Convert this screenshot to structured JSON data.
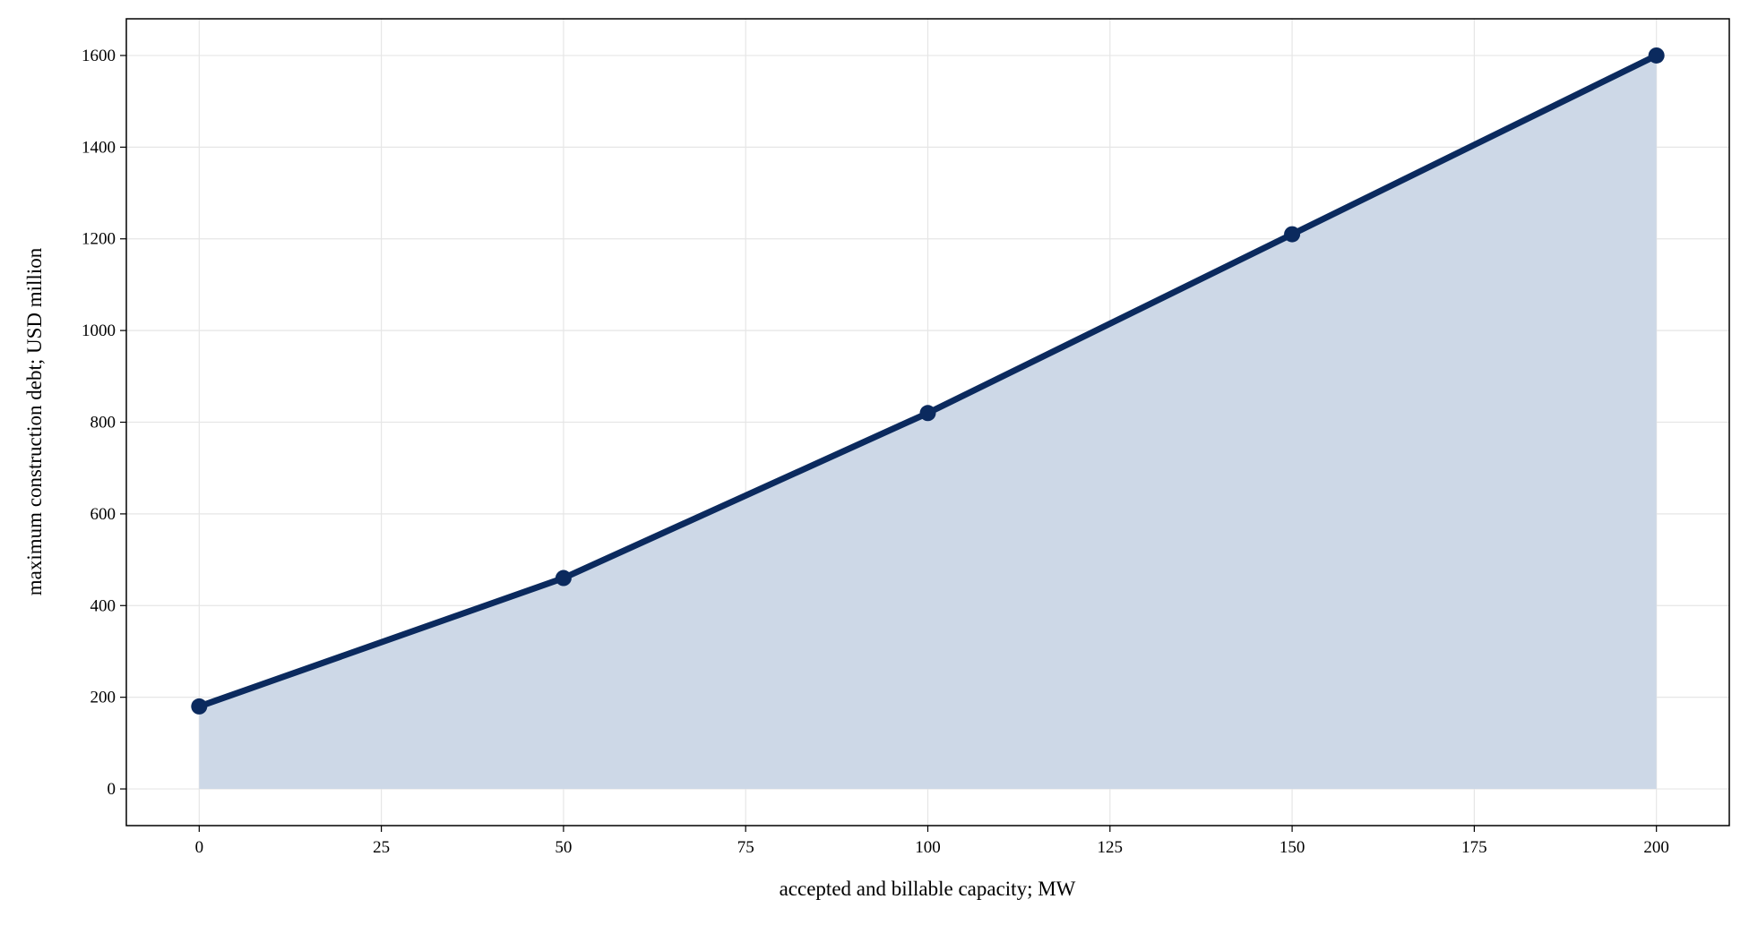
{
  "chart_data": {
    "type": "area-line",
    "x_label": "accepted and billable capacity; MW",
    "y_label": "maximum construction debt; USD million",
    "x": [
      0,
      50,
      100,
      150,
      200
    ],
    "values": [
      180,
      460,
      820,
      1210,
      1600
    ],
    "color": "#0b2a5e",
    "fill_color": "#cdd8e7",
    "xlim": [
      -10,
      210
    ],
    "xticks": [
      0,
      25,
      50,
      75,
      100,
      125,
      150,
      175,
      200
    ],
    "ylim": [
      -80,
      1680
    ],
    "yticks": [
      0,
      200,
      400,
      600,
      800,
      1000,
      1200,
      1400,
      1600
    ],
    "grid": true
  }
}
